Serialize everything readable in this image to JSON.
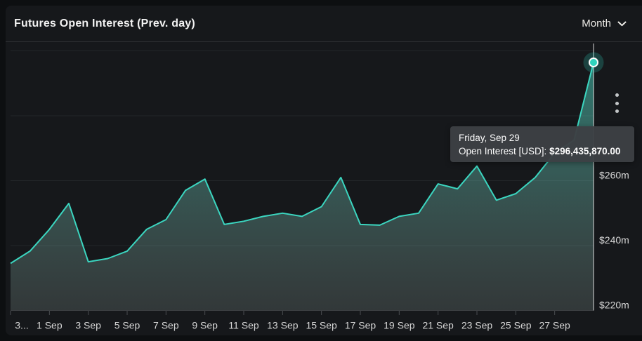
{
  "header": {
    "title": "Futures Open Interest (Prev. day)",
    "range_selector": {
      "selected": "Month"
    }
  },
  "tooltip": {
    "date_line": "Friday, Sep 29",
    "series_label": "Open Interest [USD]: ",
    "value": "$296,435,870.00"
  },
  "chart_data": {
    "type": "area",
    "title": "Futures Open Interest (Prev. day)",
    "x": [
      "30 Aug",
      "31 Aug",
      "1 Sep",
      "2 Sep",
      "3 Sep",
      "4 Sep",
      "5 Sep",
      "6 Sep",
      "7 Sep",
      "8 Sep",
      "9 Sep",
      "10 Sep",
      "11 Sep",
      "12 Sep",
      "13 Sep",
      "14 Sep",
      "15 Sep",
      "16 Sep",
      "17 Sep",
      "18 Sep",
      "19 Sep",
      "20 Sep",
      "21 Sep",
      "22 Sep",
      "23 Sep",
      "24 Sep",
      "25 Sep",
      "26 Sep",
      "27 Sep",
      "28 Sep",
      "29 Sep"
    ],
    "values_millions_usd": [
      234.5,
      238.3,
      245.0,
      253.0,
      235.0,
      236.0,
      238.3,
      245.0,
      248.0,
      257.0,
      260.5,
      246.5,
      247.5,
      249.0,
      250.0,
      249.0,
      252.0,
      261.0,
      246.5,
      246.3,
      249.0,
      250.0,
      259.0,
      257.5,
      264.5,
      254.0,
      256.0,
      261.0,
      268.5,
      272.5,
      296.44
    ],
    "highlighted_point": {
      "x": "29 Sep",
      "value_usd": "296,435,870.00",
      "value_millions": 296.44
    },
    "x_tick_labels": [
      "3...",
      "1 Sep",
      "3 Sep",
      "5 Sep",
      "7 Sep",
      "9 Sep",
      "11 Sep",
      "13 Sep",
      "15 Sep",
      "17 Sep",
      "19 Sep",
      "21 Sep",
      "23 Sep",
      "25 Sep",
      "27 Sep"
    ],
    "x_tick_days": [
      0,
      2,
      4,
      6,
      8,
      10,
      12,
      14,
      16,
      18,
      20,
      22,
      24,
      26,
      28
    ],
    "y_axis": {
      "side": "right",
      "tick_labels": [
        "$220m",
        "$240m",
        "$260m"
      ],
      "tick_values": [
        220,
        240,
        260
      ]
    },
    "ylim": [
      220,
      302
    ],
    "grid": true,
    "gridline_values": [
      240,
      260,
      280,
      300
    ],
    "legend": "none",
    "colors": {
      "line": "#3bd6c0",
      "area_top": "rgba(62,214,192,0.55)",
      "area_bottom": "rgba(150,170,163,0.22)",
      "marker_fill": "#2fd4bd",
      "marker_stroke": "#ffffff",
      "marker_halo": "rgba(46,217,195,0.22)",
      "gridline": "#232629",
      "axis_line": "#3c3f42",
      "tick": "#4a4d50",
      "axis_label": "#d6d6d6",
      "crosshair": "rgba(255,255,255,0.6)"
    }
  }
}
